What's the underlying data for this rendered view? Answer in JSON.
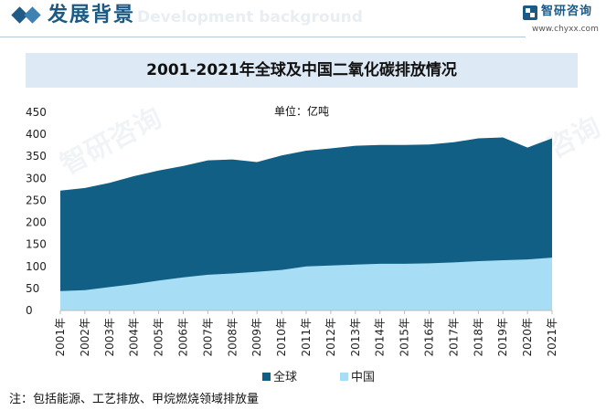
{
  "header": {
    "section_title": "发展背景",
    "section_title_en": "Development background",
    "logo_cn": "智研咨询",
    "logo_url": "www.chyxx.com",
    "watermark": "智研咨询"
  },
  "footnote": "注：包括能源、工艺排放、甲烷燃烧领域排放量",
  "chart_data": {
    "type": "area",
    "title": "2001-2021年全球及中国二氧化碳排放情况",
    "unit": "单位：亿吨",
    "x": [
      "2001年",
      "2002年",
      "2003年",
      "2004年",
      "2005年",
      "2006年",
      "2007年",
      "2008年",
      "2009年",
      "2010年",
      "2011年",
      "2012年",
      "2013年",
      "2014年",
      "2015年",
      "2016年",
      "2017年",
      "2018年",
      "2019年",
      "2020年",
      "2021年"
    ],
    "ylim": [
      0,
      450
    ],
    "yticks": [
      0,
      50,
      100,
      150,
      200,
      250,
      300,
      350,
      400,
      450
    ],
    "grid": false,
    "legend_position": "bottom",
    "series": [
      {
        "name": "全球",
        "color": "#115f84",
        "values": [
          272,
          278,
          290,
          305,
          318,
          328,
          341,
          343,
          337,
          352,
          363,
          368,
          374,
          376,
          376,
          377,
          382,
          391,
          393,
          370,
          391
        ]
      },
      {
        "name": "中国",
        "color": "#a7ddf5",
        "values": [
          44,
          46,
          53,
          60,
          68,
          75,
          81,
          84,
          88,
          92,
          100,
          102,
          104,
          106,
          106,
          107,
          109,
          112,
          114,
          116,
          120
        ]
      }
    ]
  }
}
